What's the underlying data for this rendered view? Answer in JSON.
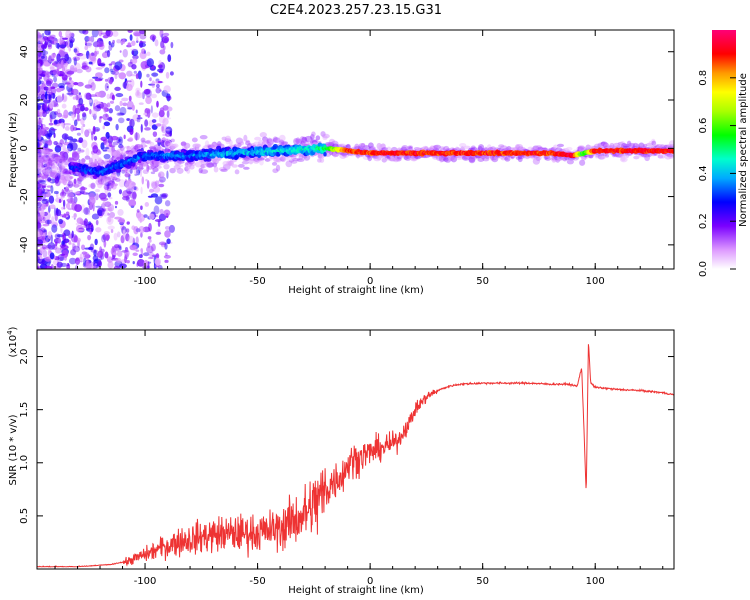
{
  "title": "C2E4.2023.257.23.15.G31",
  "colors": {
    "snr_line": "#ee3333",
    "axis": "#000000"
  },
  "chart_data": [
    {
      "type": "heatmap",
      "xlabel": "Height of straight line (km)",
      "ylabel": "Frequency (Hz)",
      "xlim": [
        -148,
        135
      ],
      "ylim": [
        -50,
        49
      ],
      "x_ticks": [
        -100,
        -50,
        0,
        50,
        100
      ],
      "x_tick_labels": [
        "-100",
        "-50",
        "0",
        "50",
        "100"
      ],
      "y_ticks": [
        -40,
        -20,
        0,
        20,
        40
      ],
      "y_tick_labels": [
        "-40",
        "-20",
        "0",
        "20",
        "40"
      ],
      "colorbar": {
        "label": "Normalized spectral amplitude",
        "range": [
          0,
          1
        ],
        "ticks": [
          0.0,
          0.2,
          0.4,
          0.6,
          0.8
        ],
        "tick_labels": [
          "0.0",
          "0.2",
          "0.4",
          "0.6",
          "0.8"
        ]
      },
      "ridge": {
        "x": [
          -148,
          -120,
          -100,
          -80,
          -60,
          -40,
          -20,
          -10,
          0,
          10,
          20,
          40,
          60,
          80,
          90,
          95,
          100,
          120,
          135
        ],
        "freq": [
          -5,
          -10,
          -3,
          -3,
          -2,
          -1,
          0,
          -1,
          -2,
          -2,
          -2,
          -2,
          -2,
          -2,
          -3,
          -2,
          -1,
          -1,
          -1
        ],
        "amplitude": [
          0.25,
          0.35,
          0.35,
          0.38,
          0.42,
          0.45,
          0.5,
          0.88,
          0.9,
          0.92,
          0.9,
          0.9,
          0.9,
          0.9,
          0.95,
          0.55,
          0.92,
          0.92,
          0.92
        ]
      }
    },
    {
      "type": "line",
      "xlabel": "Height of straight line (km)",
      "ylabel": "SNR (10 * v/v)",
      "y_scale_label": "(x10",
      "y_scale_exponent": "4",
      "y_scale_suffix": ")",
      "xlim": [
        -148,
        135
      ],
      "ylim": [
        0,
        2.25
      ],
      "x_ticks": [
        -100,
        -50,
        0,
        50,
        100
      ],
      "x_tick_labels": [
        "-100",
        "-50",
        "0",
        "50",
        "100"
      ],
      "y_ticks": [
        0.5,
        1.0,
        1.5,
        2.0
      ],
      "y_tick_labels": [
        "0.5",
        "1.0",
        "1.5",
        "2.0"
      ],
      "series": [
        {
          "x": [
            -148,
            -130,
            -115,
            -108,
            -102,
            -98,
            -95,
            -90,
            -85,
            -80,
            -75,
            -70,
            -65,
            -60,
            -55,
            -50,
            -45,
            -40,
            -35,
            -30,
            -25,
            -20,
            -18,
            -15,
            -12,
            -10,
            -8,
            -5,
            -2,
            0,
            3,
            5,
            8,
            10,
            12,
            15,
            18,
            20,
            25,
            30,
            35,
            40,
            50,
            60,
            70,
            80,
            88,
            92,
            94,
            96,
            97,
            98,
            100,
            105,
            110,
            120,
            130,
            135
          ],
          "y": [
            0.02,
            0.02,
            0.04,
            0.07,
            0.12,
            0.15,
            0.18,
            0.22,
            0.26,
            0.28,
            0.3,
            0.32,
            0.33,
            0.33,
            0.34,
            0.34,
            0.36,
            0.38,
            0.45,
            0.5,
            0.6,
            0.72,
            0.78,
            0.85,
            0.9,
            0.98,
            1.02,
            1.05,
            1.08,
            1.1,
            1.12,
            1.14,
            1.16,
            1.18,
            1.2,
            1.3,
            1.4,
            1.5,
            1.62,
            1.68,
            1.72,
            1.74,
            1.75,
            1.75,
            1.75,
            1.74,
            1.74,
            1.72,
            1.9,
            0.7,
            2.15,
            1.75,
            1.71,
            1.7,
            1.69,
            1.68,
            1.66,
            1.64
          ]
        }
      ]
    }
  ]
}
